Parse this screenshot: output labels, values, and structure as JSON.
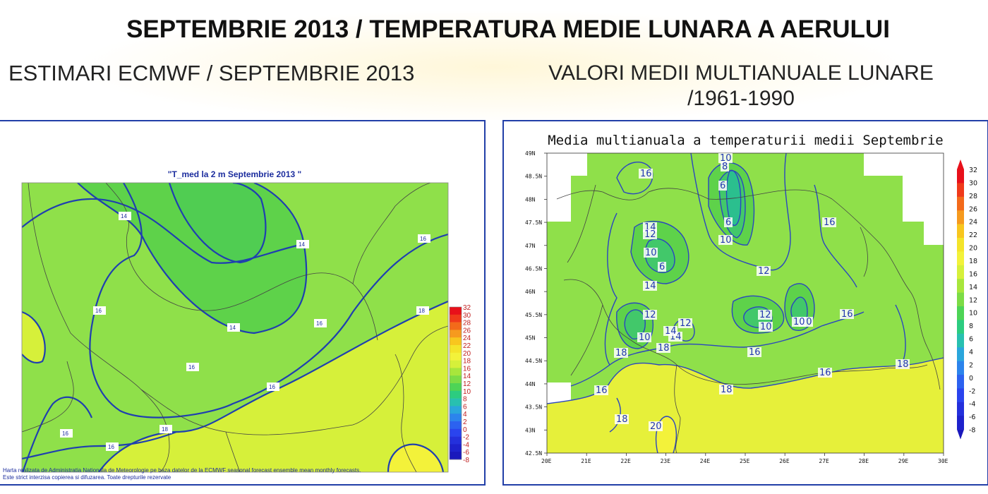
{
  "header": {
    "title": "SEPTEMBRIE 2013 / TEMPERATURA MEDIE LUNARA A AERULUI",
    "left_subtitle": "ESTIMARI ECMWF / SEPTEMBRIE 2013",
    "right_subtitle_line1": "VALORI MEDII MULTIANUALE LUNARE",
    "right_subtitle_line2": "/1961-1990"
  },
  "colors": {
    "contour": "#1f3fb0",
    "fill_16": "#8fe04a",
    "fill_14": "#5ed24a",
    "fill_18": "#d6f03a",
    "fill_12": "#42c86a",
    "fill_20": "#f3f23a",
    "border": "#223fa8"
  },
  "left_map": {
    "title": "\"T_med la 2 m Septembrie 2013 \"",
    "footer_line1": "Harta realizata de Administratia Nationala de Meteorologie pe baza datelor de la ECMWF seasonal forecast ensemble mean monthly forecasts.",
    "footer_line2": "Este strict interzisa copierea si difuzarea. Toate drepturile rezervate",
    "contour_labels": [
      "14",
      "14",
      "16",
      "14",
      "16",
      "16",
      "16",
      "18",
      "16",
      "18",
      "16",
      "16"
    ],
    "colorbar": [
      "32",
      "30",
      "28",
      "26",
      "24",
      "22",
      "20",
      "18",
      "16",
      "14",
      "12",
      "10",
      "8",
      "6",
      "4",
      "2",
      "0",
      "-2",
      "-4",
      "-6",
      "-8"
    ]
  },
  "right_map": {
    "title": "Media multianuala a temperaturii medii Septembrie",
    "lat_ticks": [
      "49N",
      "48.5N",
      "48N",
      "47.5N",
      "47N",
      "46.5N",
      "46N",
      "45.5N",
      "45N",
      "44.5N",
      "44N",
      "43.5N",
      "43N",
      "42.5N"
    ],
    "lon_ticks": [
      "20E",
      "21E",
      "22E",
      "23E",
      "24E",
      "25E",
      "26E",
      "27E",
      "28E",
      "29E",
      "30E"
    ],
    "contour_labels": [
      "10",
      "8",
      "6",
      "6",
      "10",
      "16",
      "16",
      "14",
      "12",
      "10",
      "6",
      "14",
      "12",
      "12",
      "10",
      "12",
      "10",
      "14",
      "14",
      "12",
      "10",
      "10",
      "16",
      "16",
      "16",
      "18",
      "18",
      "18",
      "18",
      "16",
      "18",
      "20"
    ],
    "colorbar": [
      "32",
      "30",
      "28",
      "26",
      "24",
      "22",
      "20",
      "18",
      "16",
      "14",
      "12",
      "10",
      "8",
      "6",
      "4",
      "2",
      "0",
      "-2",
      "-4",
      "-6",
      "-8"
    ]
  }
}
